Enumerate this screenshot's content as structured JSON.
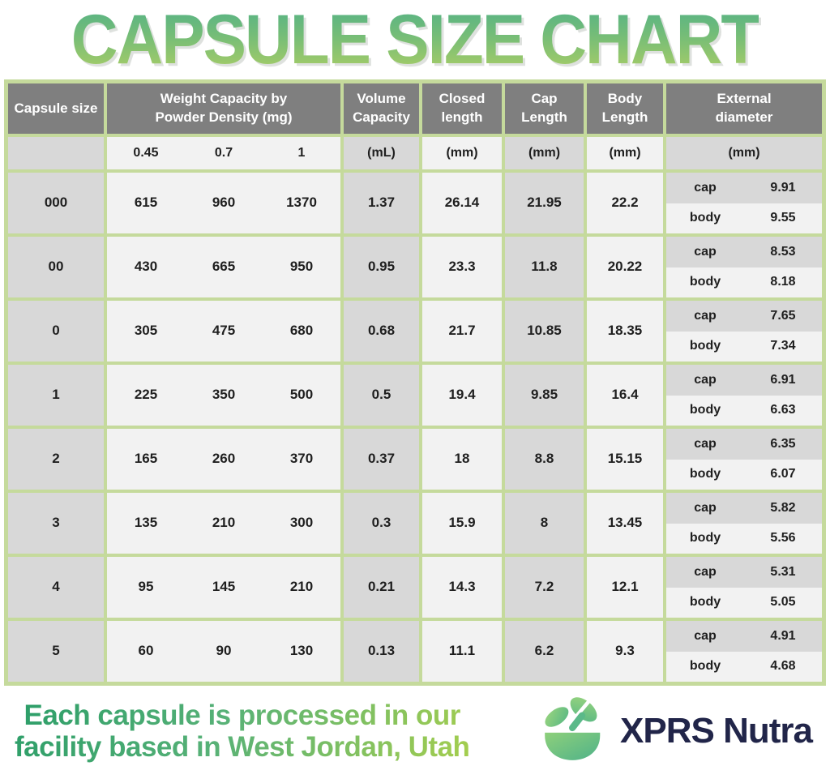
{
  "title": "CAPSULE SIZE CHART",
  "table": {
    "headers": {
      "capsule_size": "Capsule size",
      "weight_capacity": "Weight Capacity by\nPowder Density (mg)",
      "volume_capacity": "Volume\nCapacity",
      "closed_length": "Closed\nlength",
      "cap_length": "Cap\nLength",
      "body_length": "Body\nLength",
      "external_diameter": "External\ndiameter"
    },
    "units": {
      "densities": [
        "0.45",
        "0.7",
        "1"
      ],
      "volume": "(mL)",
      "closed": "(mm)",
      "cap": "(mm)",
      "body": "(mm)",
      "external": "(mm)"
    },
    "sub_labels": {
      "cap": "cap",
      "body": "body"
    }
  },
  "chart_data": {
    "type": "table",
    "title": "CAPSULE SIZE CHART",
    "columns": [
      "Capsule size",
      "Weight Capacity at Powder Density 0.45 (mg)",
      "Weight Capacity at Powder Density 0.7 (mg)",
      "Weight Capacity at Powder Density 1 (mg)",
      "Volume Capacity (mL)",
      "Closed length (mm)",
      "Cap Length (mm)",
      "Body Length (mm)",
      "External diameter cap (mm)",
      "External diameter body (mm)"
    ],
    "rows": [
      [
        "000",
        615,
        960,
        1370,
        1.37,
        26.14,
        21.95,
        22.2,
        9.91,
        9.55
      ],
      [
        "00",
        430,
        665,
        950,
        0.95,
        23.3,
        11.8,
        20.22,
        8.53,
        8.18
      ],
      [
        "0",
        305,
        475,
        680,
        0.68,
        21.7,
        10.85,
        18.35,
        7.65,
        7.34
      ],
      [
        "1",
        225,
        350,
        500,
        0.5,
        19.4,
        9.85,
        16.4,
        6.91,
        6.63
      ],
      [
        "2",
        165,
        260,
        370,
        0.37,
        18,
        8.8,
        15.15,
        6.35,
        6.07
      ],
      [
        "3",
        135,
        210,
        300,
        0.3,
        15.9,
        8,
        13.45,
        5.82,
        5.56
      ],
      [
        "4",
        95,
        145,
        210,
        0.21,
        14.3,
        7.2,
        12.1,
        5.31,
        5.05
      ],
      [
        "5",
        60,
        90,
        130,
        0.13,
        11.1,
        6.2,
        9.3,
        4.91,
        4.68
      ]
    ]
  },
  "footer": {
    "note": "Each capsule is processed in our\nfacility based in West Jordan, Utah",
    "brand": "XPRS Nutra"
  },
  "colors": {
    "border_green": "#c5da9c",
    "header_gray": "#7f7f7f",
    "cell_gray": "#d8d8d8",
    "cell_light": "#f2f2f2",
    "title_gradient_top": "#54b286",
    "title_gradient_bottom": "#abce66",
    "footer_gradient_start": "#2b9d68",
    "footer_gradient_end": "#a5ce4e",
    "brand_navy": "#212549",
    "leaf_green_light": "#8ed07b",
    "leaf_green_dark": "#4fb289"
  }
}
